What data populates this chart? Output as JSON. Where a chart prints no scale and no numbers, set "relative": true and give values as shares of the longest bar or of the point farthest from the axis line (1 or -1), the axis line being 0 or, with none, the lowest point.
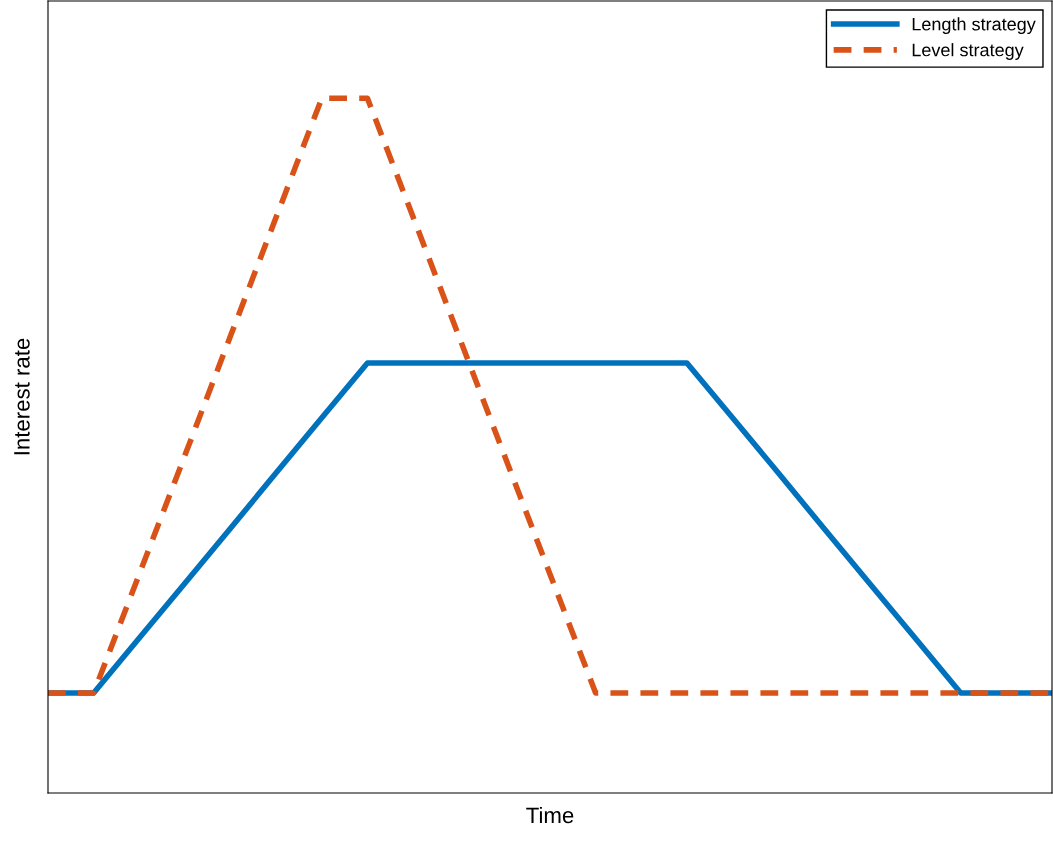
{
  "chart_data": {
    "type": "line",
    "xlabel": "Time",
    "ylabel": "Interest rate",
    "relative": true,
    "legend": "top right",
    "categories": [
      null,
      null,
      null,
      null,
      null,
      null,
      null,
      null,
      null,
      null,
      null,
      null,
      null,
      null,
      null,
      null,
      null,
      null,
      null,
      null,
      null,
      null,
      null
    ],
    "series": [
      {
        "name": "Length strategy",
        "color": "#0072bd",
        "line_style": "solid",
        "values": [
          0.144,
          0.144,
          0.223,
          0.302,
          0.381,
          0.461,
          0.54,
          0.619,
          0.619,
          0.619,
          0.619,
          0.619,
          0.619,
          0.619,
          0.619,
          0.54,
          0.461,
          0.381,
          0.302,
          0.223,
          0.144,
          0.144,
          0.144
        ]
      },
      {
        "name": "Level strategy",
        "color": "#d95319",
        "line_style": "dashed",
        "values": [
          0.144,
          0.144,
          0.315,
          0.486,
          0.658,
          0.829,
          1,
          1,
          0.829,
          0.658,
          0.486,
          0.315,
          0.144,
          0.144,
          0.144,
          0.144,
          0.144,
          0.144,
          0.144,
          0.144,
          0.144,
          0.144,
          0.144
        ]
      }
    ]
  }
}
